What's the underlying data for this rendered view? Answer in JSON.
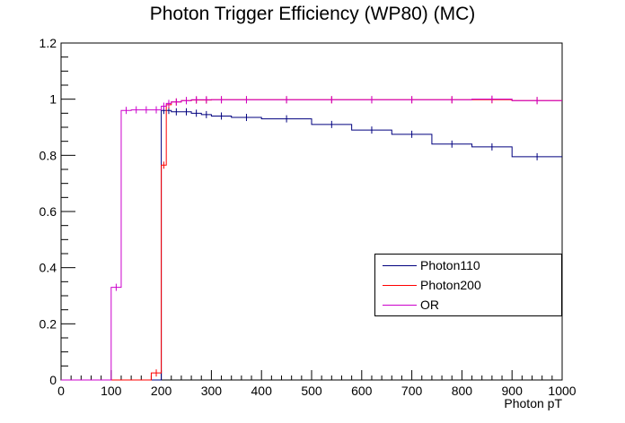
{
  "chart_data": {
    "type": "line",
    "title": "Photon Trigger Efficiency (WP80) (MC)",
    "xlabel": "Photon pT",
    "ylabel": "",
    "xlim": [
      0,
      1000
    ],
    "ylim": [
      0,
      1.2
    ],
    "x_ticks": [
      "0",
      "100",
      "200",
      "300",
      "400",
      "500",
      "600",
      "700",
      "800",
      "900",
      "1000"
    ],
    "y_ticks": [
      "0",
      "0.2",
      "0.4",
      "0.6",
      "0.8",
      "1",
      "1.2"
    ],
    "legend": "right-middle",
    "series": [
      {
        "name": "Photon110",
        "color": "#00007f",
        "bins": [
          0,
          100,
          120,
          140,
          160,
          180,
          200,
          210,
          220,
          240,
          260,
          280,
          300,
          340,
          400,
          500,
          580,
          660,
          740,
          820,
          900,
          1000
        ],
        "values": [
          0,
          0,
          0,
          0,
          0,
          0,
          0.96,
          0.96,
          0.955,
          0.955,
          0.95,
          0.945,
          0.94,
          0.935,
          0.93,
          0.91,
          0.89,
          0.875,
          0.84,
          0.83,
          0.795
        ]
      },
      {
        "name": "Photon200",
        "color": "#ff0000",
        "bins": [
          0,
          100,
          120,
          140,
          160,
          180,
          200,
          210,
          220,
          240,
          260,
          280,
          300,
          340,
          400,
          500,
          580,
          660,
          740,
          820,
          900,
          1000
        ],
        "values": [
          0,
          0,
          0,
          0,
          0,
          0.025,
          0.765,
          0.98,
          0.99,
          0.995,
          0.997,
          0.997,
          0.998,
          0.998,
          0.998,
          0.998,
          0.998,
          0.998,
          0.998,
          0.998,
          0.995
        ]
      },
      {
        "name": "OR",
        "color": "#cc00cc",
        "bins": [
          0,
          100,
          120,
          140,
          160,
          180,
          200,
          210,
          220,
          240,
          260,
          280,
          300,
          340,
          400,
          500,
          580,
          660,
          740,
          820,
          900,
          1000
        ],
        "values": [
          0,
          0.33,
          0.96,
          0.962,
          0.962,
          0.962,
          0.975,
          0.985,
          0.99,
          0.995,
          0.998,
          0.998,
          0.998,
          0.998,
          0.998,
          0.998,
          0.998,
          0.998,
          0.998,
          1.0,
          0.995
        ]
      }
    ]
  }
}
